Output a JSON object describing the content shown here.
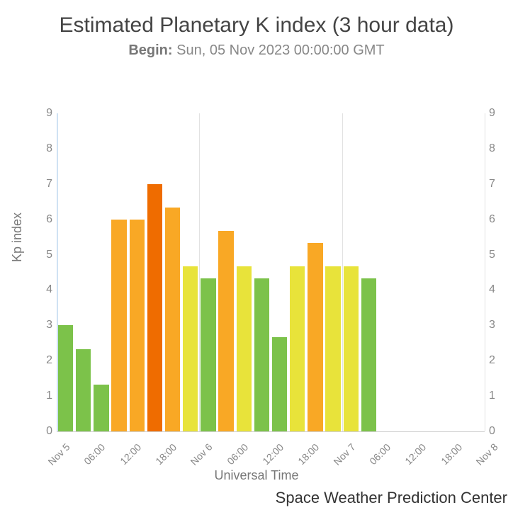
{
  "title": "Estimated Planetary K index (3 hour data)",
  "subtitle_prefix": "Begin:",
  "subtitle_date": " Sun, 05 Nov 2023 00:00:00 GMT",
  "ylabel": "Kp index",
  "xlabel": "Universal Time",
  "attribution": "Space Weather Prediction Center",
  "chart": {
    "type": "bar",
    "ylim": [
      0,
      9
    ],
    "yticks": [
      0,
      1,
      2,
      3,
      4,
      5,
      6,
      7,
      8,
      9
    ],
    "ytick_fontsize": 16,
    "xtick_fontsize": 14,
    "title_fontsize": 30,
    "subtitle_fontsize": 20,
    "label_fontsize": 18,
    "background_color": "#ffffff",
    "grid_color": "#e2e2e2",
    "left_axis_color": "#cfe2f3",
    "axis_text_color": "#888888",
    "bar_width_ratio": 0.85,
    "x_range_hours": 72,
    "x_ticks": [
      {
        "pos": 0,
        "label": "Nov 5"
      },
      {
        "pos": 6,
        "label": "06:00"
      },
      {
        "pos": 12,
        "label": "12:00"
      },
      {
        "pos": 18,
        "label": "18:00"
      },
      {
        "pos": 24,
        "label": "Nov 6"
      },
      {
        "pos": 30,
        "label": "06:00"
      },
      {
        "pos": 36,
        "label": "12:00"
      },
      {
        "pos": 42,
        "label": "18:00"
      },
      {
        "pos": 48,
        "label": "Nov 7"
      },
      {
        "pos": 54,
        "label": "06:00"
      },
      {
        "pos": 60,
        "label": "12:00"
      },
      {
        "pos": 66,
        "label": "18:00"
      },
      {
        "pos": 72,
        "label": "Nov 8"
      }
    ],
    "gridlines_at": [
      0,
      24,
      48,
      72
    ],
    "bars": [
      {
        "x": 0,
        "value": 3.0,
        "color": "#7cc24a"
      },
      {
        "x": 3,
        "value": 2.33,
        "color": "#7cc24a"
      },
      {
        "x": 6,
        "value": 1.33,
        "color": "#7cc24a"
      },
      {
        "x": 9,
        "value": 6.0,
        "color": "#f9a825"
      },
      {
        "x": 12,
        "value": 6.0,
        "color": "#f9a825"
      },
      {
        "x": 15,
        "value": 7.0,
        "color": "#ef6c00"
      },
      {
        "x": 18,
        "value": 6.33,
        "color": "#f9a825"
      },
      {
        "x": 21,
        "value": 4.67,
        "color": "#e8e33a"
      },
      {
        "x": 24,
        "value": 4.33,
        "color": "#7cc24a"
      },
      {
        "x": 27,
        "value": 5.67,
        "color": "#f9a825"
      },
      {
        "x": 30,
        "value": 4.67,
        "color": "#e8e33a"
      },
      {
        "x": 33,
        "value": 4.33,
        "color": "#7cc24a"
      },
      {
        "x": 36,
        "value": 2.67,
        "color": "#7cc24a"
      },
      {
        "x": 39,
        "value": 4.67,
        "color": "#e8e33a"
      },
      {
        "x": 42,
        "value": 5.33,
        "color": "#f9a825"
      },
      {
        "x": 45,
        "value": 4.67,
        "color": "#e8e33a"
      },
      {
        "x": 48,
        "value": 4.67,
        "color": "#e8e33a"
      },
      {
        "x": 51,
        "value": 4.33,
        "color": "#7cc24a"
      }
    ]
  }
}
